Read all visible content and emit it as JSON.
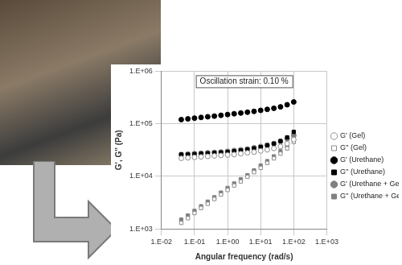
{
  "chart_data": {
    "type": "scatter",
    "annotation": "Oscillation strain: 0.10 %",
    "x_label": "Angular frequency (rad/s)",
    "y_label": "G', G'' (Pa)",
    "log": true,
    "grid": true,
    "legend": "right",
    "xlim": [
      0.01,
      1000
    ],
    "ylim": [
      1000,
      1000000
    ],
    "xticks": [
      {
        "value": 0.01,
        "label": "1.E-02"
      },
      {
        "value": 0.1,
        "label": "1.E-01"
      },
      {
        "value": 1,
        "label": "1.E+00"
      },
      {
        "value": 10,
        "label": "1.E+01"
      },
      {
        "value": 100,
        "label": "1.E+02"
      },
      {
        "value": 1000,
        "label": "1.E+03"
      }
    ],
    "yticks": [
      {
        "value": 1000,
        "label": "1.E+03"
      },
      {
        "value": 10000,
        "label": "1.E+04"
      },
      {
        "value": 100000,
        "label": "1.E+05"
      },
      {
        "value": 1000000,
        "label": "1.E+06"
      }
    ],
    "x": [
      0.0398,
      0.0631,
      0.1,
      0.158,
      0.251,
      0.398,
      0.631,
      1,
      1.58,
      2.51,
      3.98,
      6.31,
      10,
      15.8,
      25.1,
      39.8,
      63.1,
      100
    ],
    "series": [
      {
        "name": "G' (Gel)",
        "color": "#8c8c8c",
        "marker": "open_circle",
        "values": [
          22000,
          22500,
          23000,
          23500,
          24000,
          24500,
          25000,
          25500,
          26000,
          27000,
          28000,
          29000,
          30500,
          32000,
          34000,
          37000,
          42000,
          50000
        ]
      },
      {
        "name": "G'' (Gel)",
        "color": "#8c8c8c",
        "marker": "open_square",
        "values": [
          1300,
          1600,
          2000,
          2500,
          3000,
          3700,
          4500,
          5500,
          6700,
          8000,
          9800,
          12000,
          14500,
          18000,
          22000,
          27000,
          34000,
          45000
        ]
      },
      {
        "name": "G' (Urethane)",
        "color": "#000000",
        "marker": "circle",
        "values": [
          120000,
          124000,
          128000,
          132000,
          136000,
          140000,
          145000,
          150000,
          155000,
          160000,
          166000,
          172000,
          180000,
          188000,
          197000,
          210000,
          230000,
          260000
        ]
      },
      {
        "name": "G'' (Urethane)",
        "color": "#000000",
        "marker": "square",
        "values": [
          26000,
          26000,
          26500,
          27000,
          27500,
          28000,
          28500,
          29000,
          30000,
          31000,
          32500,
          34000,
          36000,
          39000,
          42000,
          47000,
          55000,
          70000
        ]
      },
      {
        "name": "G' (Urethane + Gel)",
        "color": "#808080",
        "marker": "circle",
        "values": [
          26000,
          26500,
          27000,
          27500,
          28000,
          28500,
          29000,
          30000,
          31000,
          32000,
          33000,
          35000,
          37000,
          39000,
          42000,
          46000,
          52000,
          60000
        ]
      },
      {
        "name": "G'' (Urethane + Gel)",
        "color": "#808080",
        "marker": "square",
        "values": [
          1500,
          1800,
          2200,
          2700,
          3300,
          4000,
          4900,
          6000,
          7300,
          8800,
          10500,
          13000,
          16000,
          19500,
          24000,
          30000,
          38000,
          52000
        ]
      }
    ]
  }
}
